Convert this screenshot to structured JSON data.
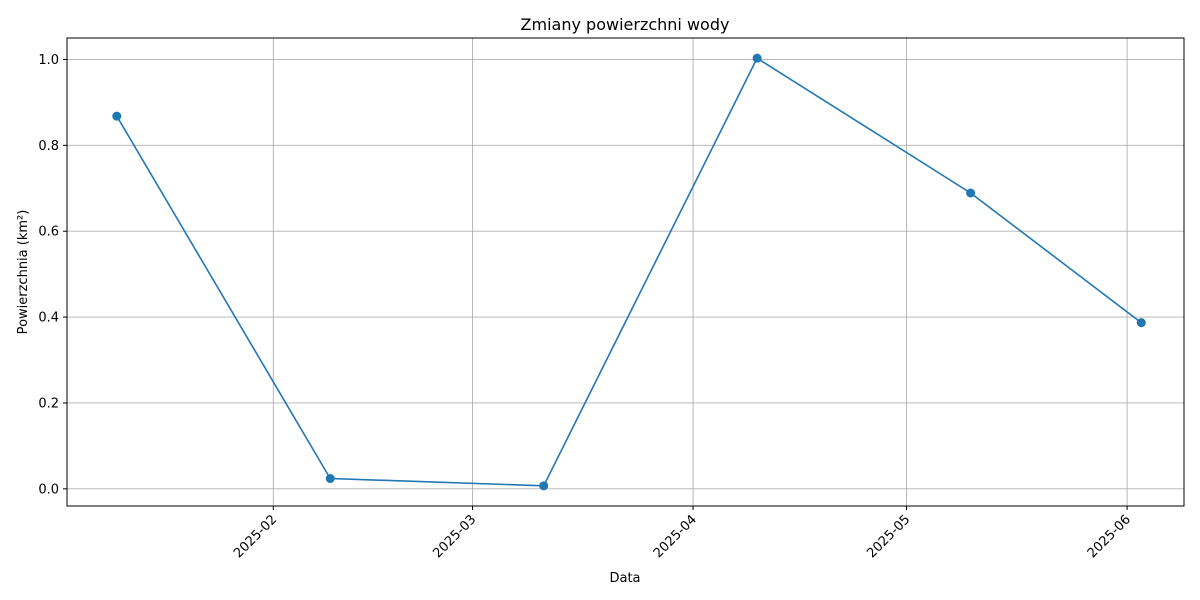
{
  "chart_data": {
    "type": "line",
    "title": "Zmiany powierzchni wody",
    "xlabel": "Data",
    "ylabel": "Powierzchnia (km²)",
    "grid": true,
    "x_axis_type": "date",
    "xlim": [
      "2025-01-03",
      "2025-06-09"
    ],
    "ylim": [
      -0.04,
      1.05
    ],
    "x_ticks": [
      "2025-02-01",
      "2025-03-01",
      "2025-04-01",
      "2025-05-01",
      "2025-06-01"
    ],
    "x_tick_labels": [
      "2025-02",
      "2025-03",
      "2025-04",
      "2025-05",
      "2025-06"
    ],
    "y_ticks": [
      0.0,
      0.2,
      0.4,
      0.6,
      0.8,
      1.0
    ],
    "y_tick_labels": [
      "0.0",
      "0.2",
      "0.4",
      "0.6",
      "0.8",
      "1.0"
    ],
    "series": [
      {
        "name": "Powierzchnia",
        "color": "#1f77b4",
        "marker": "circle",
        "x": [
          "2025-01-10",
          "2025-02-09",
          "2025-03-11",
          "2025-04-10",
          "2025-05-10",
          "2025-06-03"
        ],
        "values": [
          0.868,
          0.024,
          0.007,
          1.003,
          0.689,
          0.387
        ]
      }
    ]
  }
}
